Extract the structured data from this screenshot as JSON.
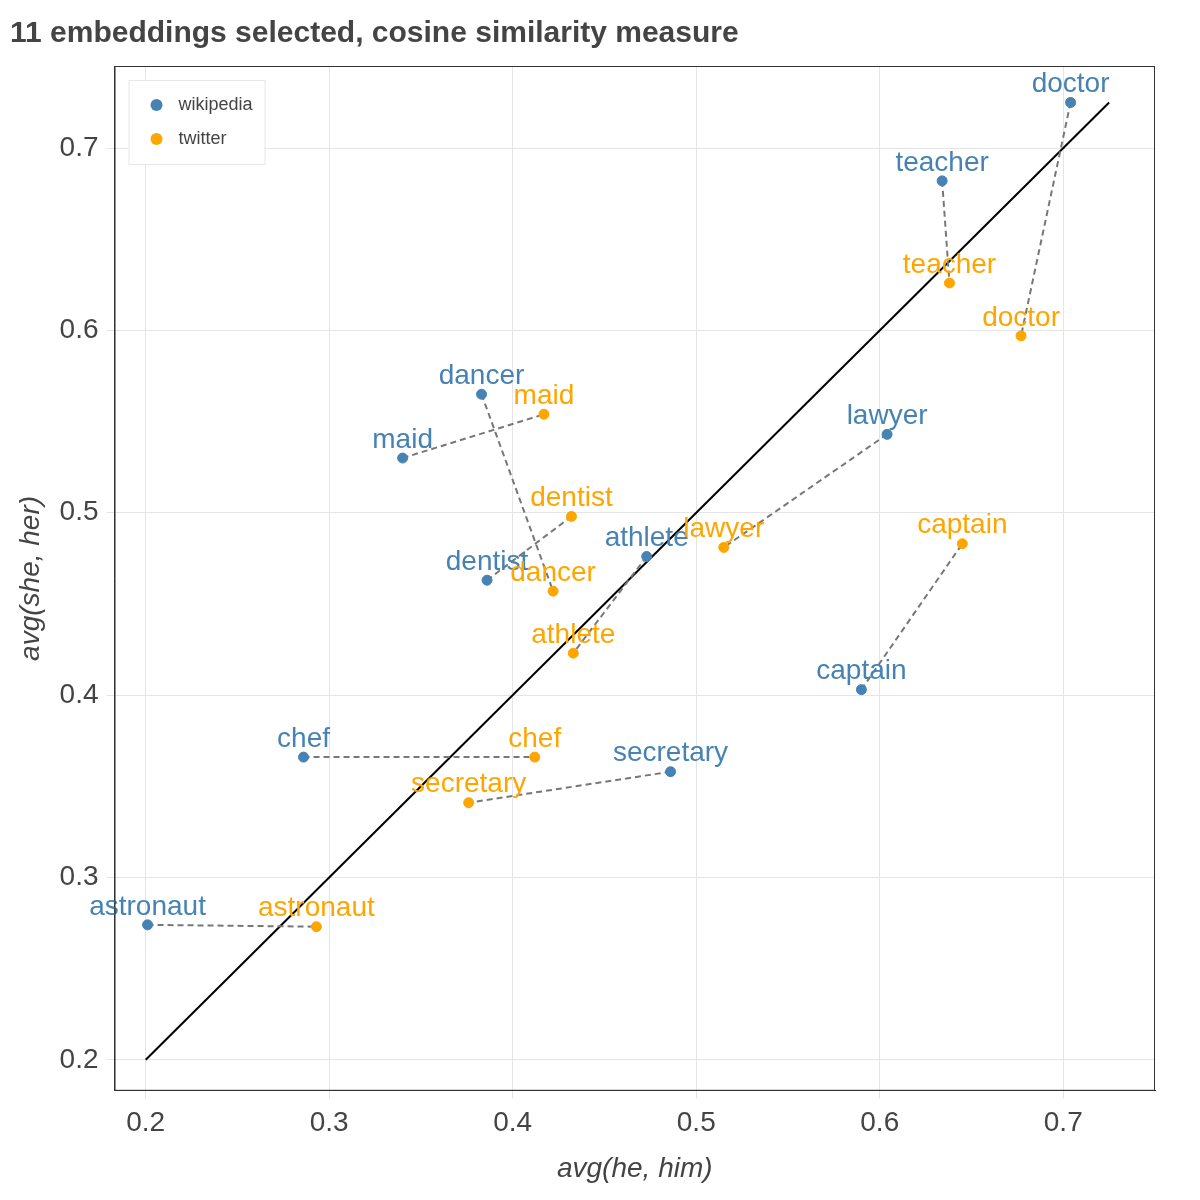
{
  "chart_data": {
    "type": "scatter",
    "title": "11 embeddings selected, cosine similarity measure",
    "x_label": "avg(he, him)",
    "y_label": "avg(she, her)",
    "categories": [
      "doctor",
      "teacher",
      "lawyer",
      "captain",
      "secretary",
      "athlete",
      "dentist",
      "dancer",
      "maid",
      "chef",
      "astronaut"
    ],
    "series": [
      {
        "name": "wikipedia",
        "color": "#4682b4",
        "x": [
          0.704,
          0.634,
          0.604,
          0.59,
          0.486,
          0.473,
          0.386,
          0.383,
          0.34,
          0.286,
          0.201
        ],
        "values": [
          0.725,
          0.682,
          0.543,
          0.403,
          0.358,
          0.476,
          0.463,
          0.565,
          0.53,
          0.366,
          0.274
        ]
      },
      {
        "name": "twitter",
        "color": "#ffa500",
        "x": [
          0.677,
          0.638,
          0.515,
          0.645,
          0.376,
          0.433,
          0.432,
          0.422,
          0.417,
          0.412,
          0.293
        ],
        "values": [
          0.597,
          0.626,
          0.481,
          0.483,
          0.341,
          0.423,
          0.498,
          0.457,
          0.554,
          0.366,
          0.273
        ]
      }
    ],
    "reference_line": {
      "x": [
        0.2,
        0.725
      ],
      "y": [
        0.2,
        0.725
      ]
    },
    "xlim": [
      0.183,
      0.75
    ],
    "ylim": [
      0.183,
      0.745
    ],
    "xticks": [
      0.2,
      0.3,
      0.4,
      0.5,
      0.6,
      0.7
    ],
    "yticks": [
      0.2,
      0.3,
      0.4,
      0.5,
      0.6,
      0.7
    ],
    "grid": true,
    "legend": "upper left",
    "line_style": "dashed"
  }
}
